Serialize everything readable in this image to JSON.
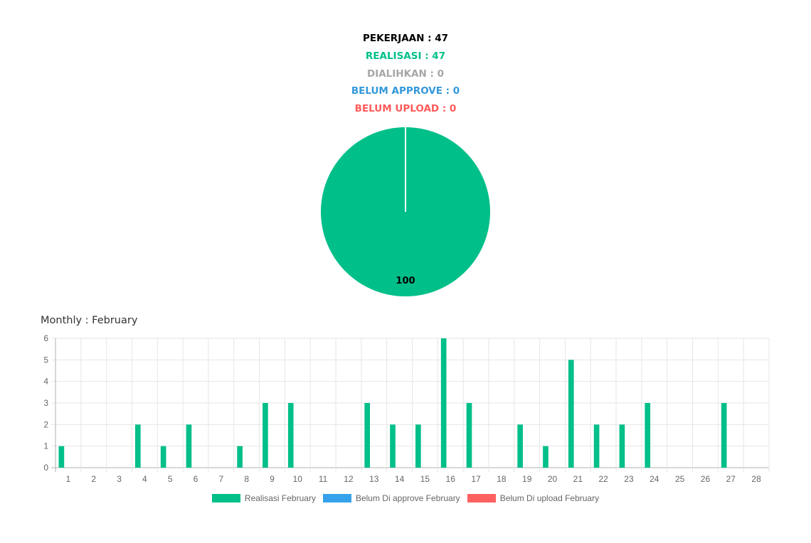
{
  "summary": {
    "pekerjaan": "PEKERJAAN : 47",
    "realisasi": "REALISASI : 47",
    "dialihkan": "DIALIHKAN : 0",
    "belum_approve": "BELUM APPROVE : 0",
    "belum_upload": "BELUM UPLOAD : 0"
  },
  "colors": {
    "pekerjaan": "#000000",
    "realisasi": "#00bf89",
    "dialihkan": "#a6a6a6",
    "belum_approve": "#3498db",
    "belum_upload": "#ff5a5a"
  },
  "monthly_title": "Monthly : February",
  "legend": [
    {
      "label": "Realisasi February",
      "color": "#00bf89"
    },
    {
      "label": "Belum Di approve February",
      "color": "#36a2eb"
    },
    {
      "label": "Belum Di upload February",
      "color": "#ff6060"
    }
  ],
  "chart_data": [
    {
      "type": "pie",
      "slices": [
        {
          "name": "",
          "value": 100,
          "color": "#00bf89"
        }
      ],
      "data_label": "100"
    },
    {
      "type": "bar",
      "title": "Monthly : February",
      "categories": [
        "1",
        "2",
        "3",
        "4",
        "5",
        "6",
        "7",
        "8",
        "9",
        "10",
        "11",
        "12",
        "13",
        "14",
        "15",
        "16",
        "17",
        "18",
        "19",
        "20",
        "21",
        "22",
        "23",
        "24",
        "25",
        "26",
        "27",
        "28"
      ],
      "series": [
        {
          "name": "Realisasi February",
          "color": "#00bf89",
          "values": [
            1,
            0,
            0,
            2,
            1,
            2,
            0,
            1,
            3,
            3,
            0,
            0,
            3,
            2,
            2,
            6,
            3,
            0,
            2,
            1,
            5,
            2,
            2,
            3,
            0,
            0,
            3,
            0
          ]
        },
        {
          "name": "Belum Di approve February",
          "color": "#36a2eb",
          "values": [
            0,
            0,
            0,
            0,
            0,
            0,
            0,
            0,
            0,
            0,
            0,
            0,
            0,
            0,
            0,
            0,
            0,
            0,
            0,
            0,
            0,
            0,
            0,
            0,
            0,
            0,
            0,
            0
          ]
        },
        {
          "name": "Belum Di upload February",
          "color": "#ff6060",
          "values": [
            0,
            0,
            0,
            0,
            0,
            0,
            0,
            0,
            0,
            0,
            0,
            0,
            0,
            0,
            0,
            0,
            0,
            0,
            0,
            0,
            0,
            0,
            0,
            0,
            0,
            0,
            0,
            0
          ]
        }
      ],
      "ylim": [
        0,
        6
      ],
      "yticks": [
        0,
        1,
        2,
        3,
        4,
        5,
        6
      ],
      "grid": true,
      "legend_position": "bottom"
    }
  ]
}
